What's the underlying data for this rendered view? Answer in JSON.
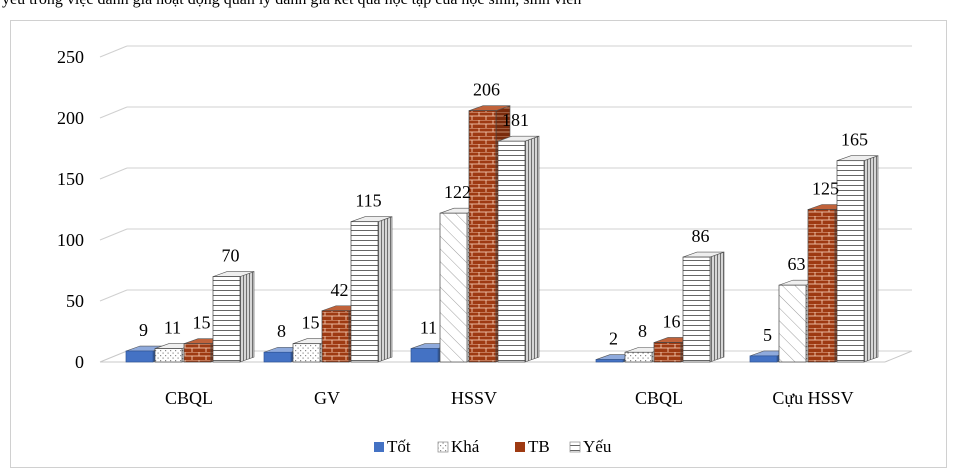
{
  "top_text": "yếu trong việc đánh giá hoạt động quản lý đánh giá kết quả học tập của học sinh, sinh viên",
  "chart_data": {
    "type": "bar",
    "categories": [
      "CBQL",
      "GV",
      "HSSV",
      "CBQL",
      "Cựu HSSV"
    ],
    "series": [
      {
        "name": "Tốt",
        "values": [
          9,
          8,
          11,
          2,
          5
        ]
      },
      {
        "name": "Khá",
        "values": [
          11,
          15,
          122,
          8,
          63
        ]
      },
      {
        "name": "TB",
        "values": [
          15,
          42,
          206,
          16,
          125
        ]
      },
      {
        "name": "Yếu",
        "values": [
          70,
          115,
          181,
          86,
          165
        ]
      }
    ],
    "ylim": [
      0,
      250
    ],
    "yticks": [
      0,
      50,
      100,
      150,
      200,
      250
    ],
    "grid": true,
    "legend_position": "bottom",
    "colors": {
      "Tốt": "#4472c4",
      "Khá": "#ffffff",
      "TB": "#9e3a12",
      "Yếu": "#ffffff"
    }
  }
}
